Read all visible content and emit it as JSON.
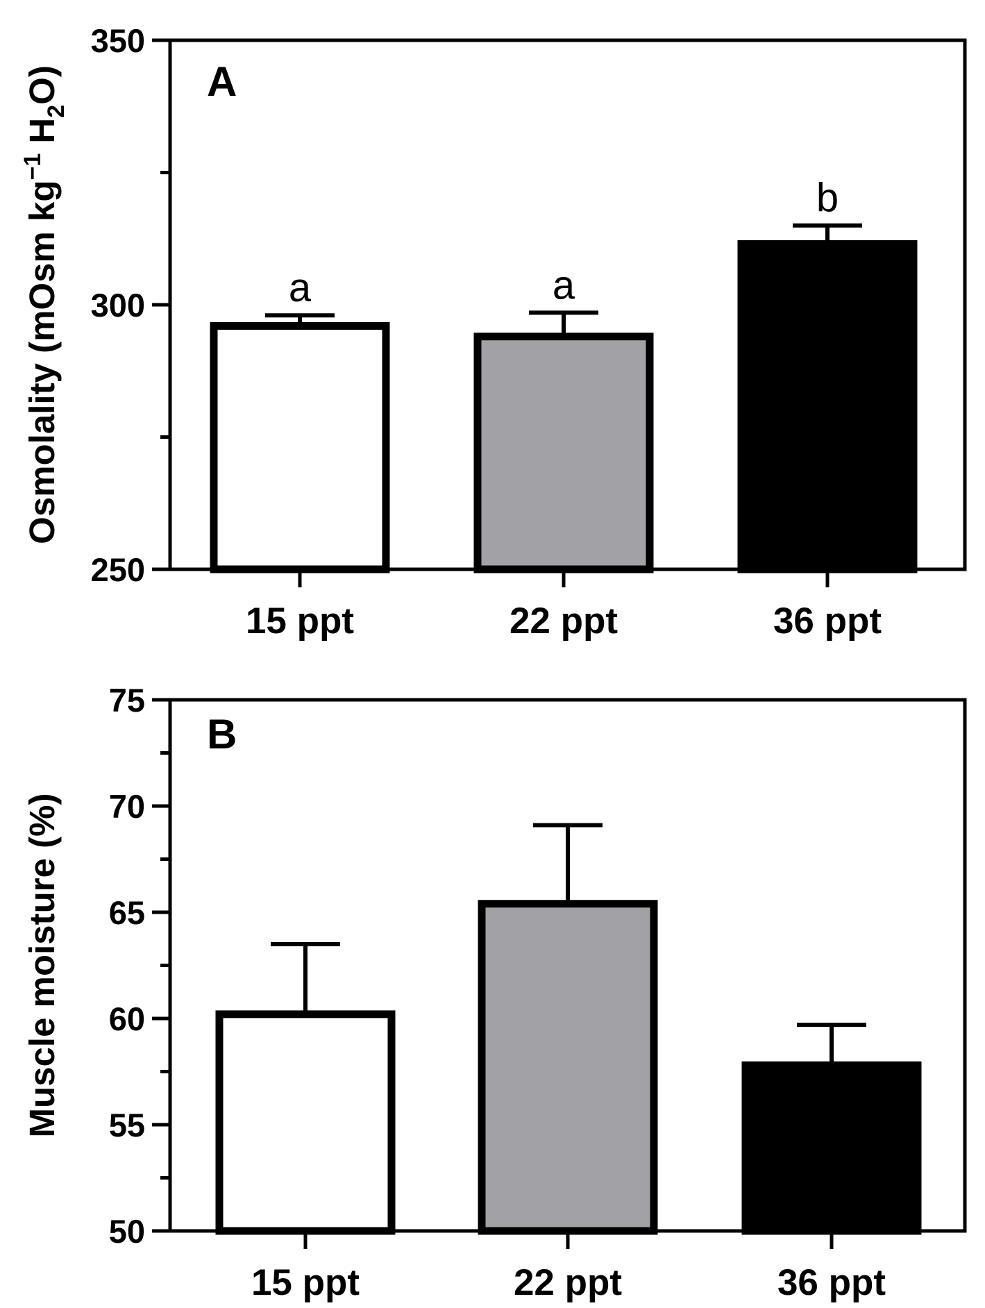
{
  "colors": {
    "white_bar": "#ffffff",
    "gray_bar": "#a2a1a5",
    "black_bar": "#000000",
    "axis": "#000000"
  },
  "chart_data": [
    {
      "type": "bar",
      "panel_label": "A",
      "categories": [
        "15 ppt",
        "22 ppt",
        "36 ppt"
      ],
      "values": [
        296,
        294,
        311.5
      ],
      "errors": [
        2,
        4.5,
        3.5
      ],
      "significance": [
        "a",
        "a",
        "b"
      ],
      "ylabel": "Osmolality (mOsm kg-1 H2O)",
      "ylabel_parts": {
        "main": "Osmolality (mOsm kg",
        "sup": "−1",
        "mid": " H",
        "sub": "2",
        "tail": "O)"
      },
      "ylim": [
        250,
        350
      ],
      "yticks": [
        250,
        300,
        350
      ],
      "minor_step": 25
    },
    {
      "type": "bar",
      "panel_label": "B",
      "categories": [
        "15 ppt",
        "22 ppt",
        "36 ppt"
      ],
      "values": [
        60.2,
        65.4,
        57.8
      ],
      "errors": [
        3.3,
        3.7,
        1.9
      ],
      "significance": [
        "",
        "",
        ""
      ],
      "ylabel": "Muscle moisture (%)",
      "ylim": [
        50,
        75
      ],
      "yticks": [
        50,
        55,
        60,
        65,
        70,
        75
      ],
      "minor_step": 2.5
    }
  ]
}
